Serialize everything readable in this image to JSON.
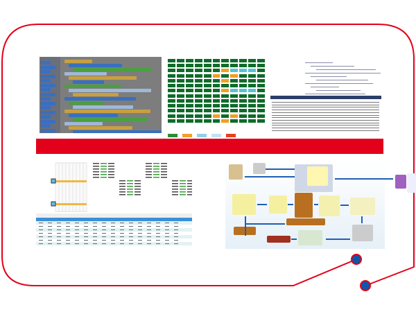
{
  "colors": {
    "frame": "#e3001b",
    "banner": "#e3001b",
    "node_dot": "#0e56a8",
    "grid_cell": "#0f6b2a",
    "grid_alert": "#f0a020",
    "flow_arrow": "#1f5fb0"
  },
  "panels": [
    "block-programming-editor",
    "status-grid-monitor",
    "code-and-log-viewer",
    "production-scheduling-table",
    "warehouse-process-flowchart"
  ],
  "legend_colors": [
    "#2e8b3a",
    "#f0a030",
    "#8fd0e8",
    "#bfe4f0",
    "#e84020"
  ]
}
